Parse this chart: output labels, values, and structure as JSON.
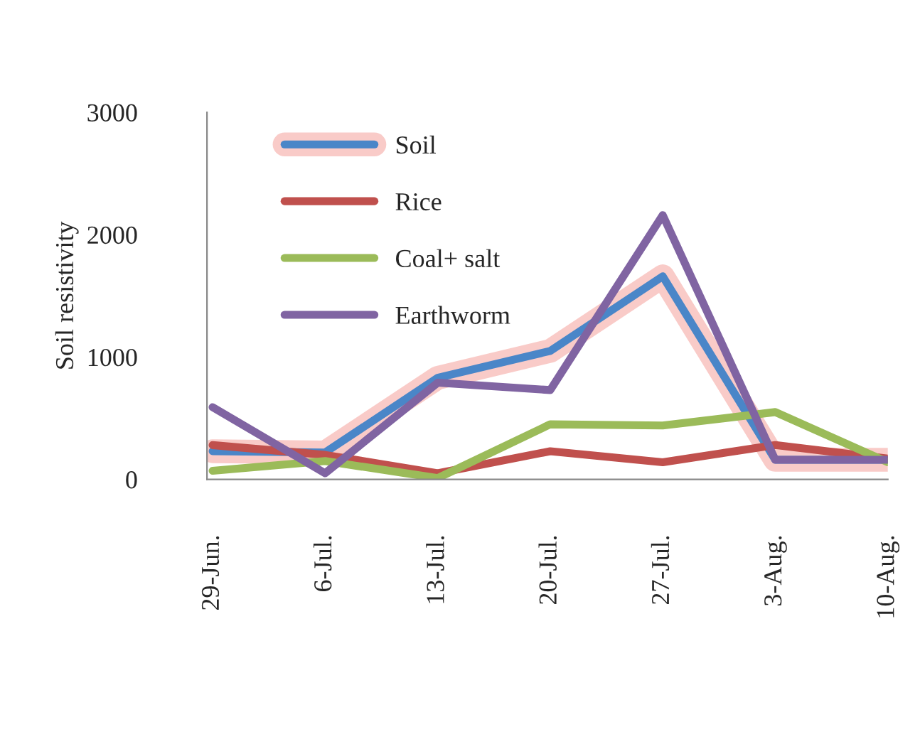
{
  "chart_data": {
    "type": "line",
    "ylabel": "Soil resistivity",
    "categories": [
      "29-Jun.",
      "6-Jul.",
      "13-Jul.",
      "20-Jul.",
      "27-Jul.",
      "3-Aug.",
      "10-Aug."
    ],
    "series": [
      {
        "name": "Soil",
        "color": "#4a86c8",
        "values": [
          230,
          220,
          830,
          1050,
          1660,
          160,
          160
        ]
      },
      {
        "name": "Rice",
        "color": "#c0504d",
        "values": [
          280,
          200,
          50,
          230,
          140,
          280,
          170
        ]
      },
      {
        "name": "Coal+ salt",
        "color": "#9bbb59",
        "values": [
          70,
          150,
          10,
          450,
          440,
          550,
          140
        ]
      },
      {
        "name": "Earthworm",
        "color": "#8064a2",
        "values": [
          590,
          50,
          790,
          730,
          2160,
          160,
          160
        ]
      }
    ],
    "ylim": [
      0,
      3000
    ],
    "yticks": [
      0,
      1000,
      2000,
      3000
    ],
    "grid": false,
    "legend": "top left",
    "marker": "none",
    "line_style": "solid"
  }
}
